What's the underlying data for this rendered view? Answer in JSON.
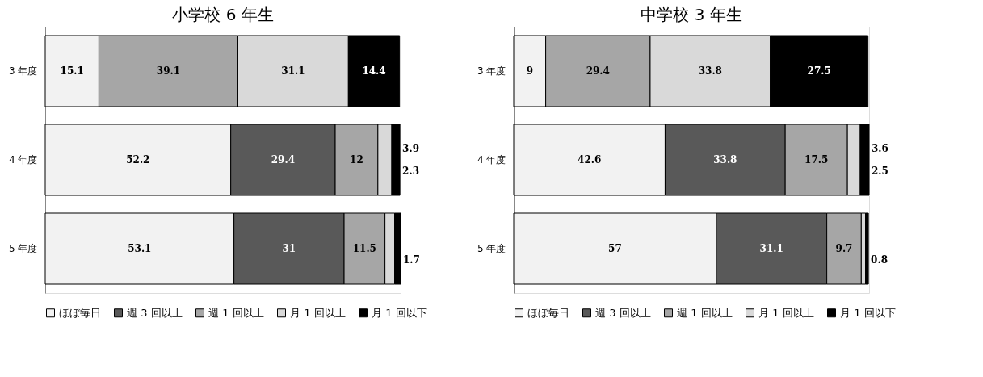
{
  "chart_data": [
    {
      "type": "bar",
      "orientation": "horizontal",
      "stacked": true,
      "title": "小学校 6 年生",
      "categories": [
        "3 年度",
        "4 年度",
        "5 年度"
      ],
      "xlim": [
        0,
        100
      ],
      "tick_labels": "y",
      "legend": "bottom",
      "series": [
        {
          "name": "ほぼ毎日",
          "color": "#f2f2f2",
          "values": [
            15.1,
            52.2,
            53.1
          ],
          "value_labels": [
            "15.1",
            "52.2",
            "53.1"
          ]
        },
        {
          "name": "週 3 回以上",
          "color": "#595959",
          "values": [
            null,
            29.4,
            31
          ],
          "value_labels": [
            null,
            "29.4",
            "31"
          ]
        },
        {
          "name": "週 1 回以上",
          "color": "#a6a6a6",
          "values": [
            39.1,
            12,
            11.5
          ],
          "value_labels": [
            "39.1",
            "12",
            "11.5"
          ]
        },
        {
          "name": "月 1 回以上",
          "color": "#d9d9d9",
          "values": [
            31.1,
            3.9,
            2.7
          ],
          "value_labels": [
            "31.1",
            "3.9",
            null
          ]
        },
        {
          "name": "月 1 回以下",
          "color": "#000000",
          "values": [
            14.4,
            2.3,
            1.7
          ],
          "value_labels": [
            "14.4",
            "2.3",
            "1.7"
          ]
        }
      ]
    },
    {
      "type": "bar",
      "orientation": "horizontal",
      "stacked": true,
      "title": "中学校 3 年生",
      "categories": [
        "3 年度",
        "4 年度",
        "5 年度"
      ],
      "xlim": [
        0,
        100
      ],
      "tick_labels": "y",
      "legend": "bottom",
      "series": [
        {
          "name": "ほぼ毎日",
          "color": "#f2f2f2",
          "values": [
            9,
            42.6,
            57
          ],
          "value_labels": [
            "9",
            "42.6",
            "57"
          ]
        },
        {
          "name": "週 3 回以上",
          "color": "#595959",
          "values": [
            null,
            33.8,
            31.1
          ],
          "value_labels": [
            null,
            "33.8",
            "31.1"
          ]
        },
        {
          "name": "週 1 回以上",
          "color": "#a6a6a6",
          "values": [
            29.4,
            17.5,
            9.7
          ],
          "value_labels": [
            "29.4",
            "17.5",
            "9.7"
          ]
        },
        {
          "name": "月 1 回以上",
          "color": "#d9d9d9",
          "values": [
            33.8,
            3.6,
            1.2
          ],
          "value_labels": [
            "33.8",
            "3.6",
            null
          ]
        },
        {
          "name": "月 1 回以下",
          "color": "#000000",
          "values": [
            27.5,
            2.5,
            0.8
          ],
          "value_labels": [
            "27.5",
            "2.5",
            "0.8"
          ]
        }
      ]
    }
  ]
}
